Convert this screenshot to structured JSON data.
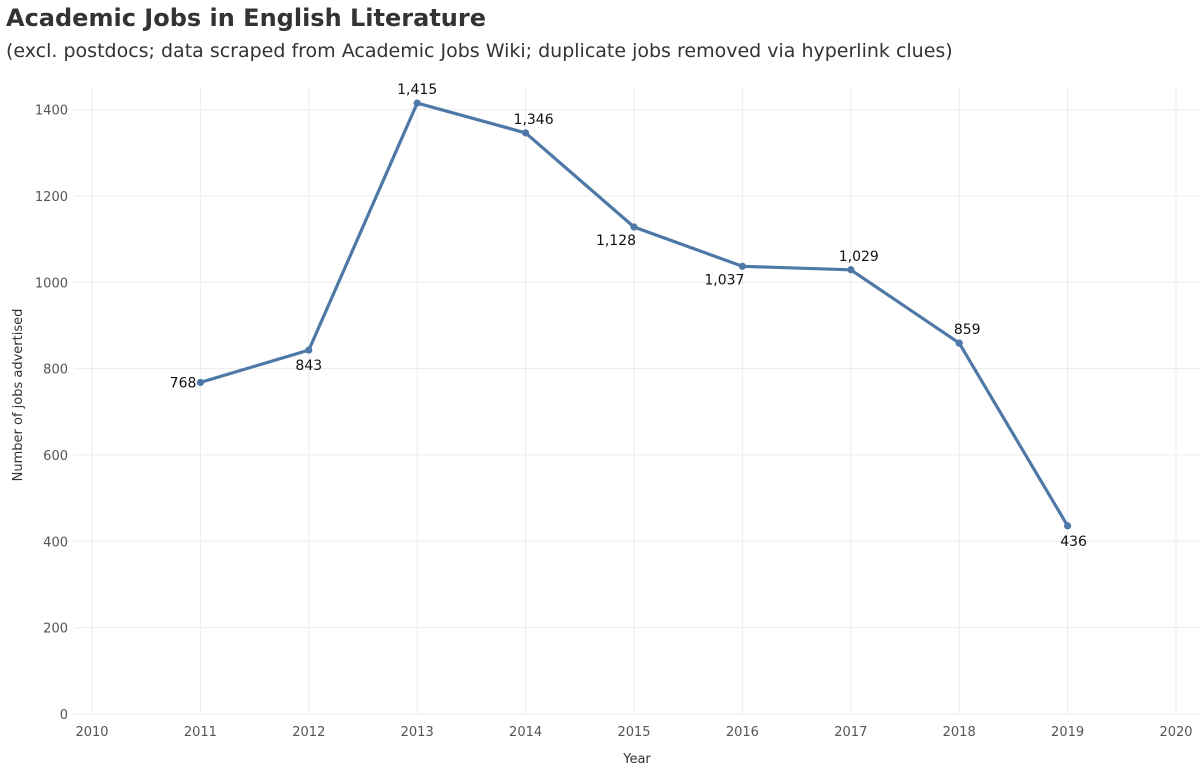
{
  "chart_data": {
    "type": "line",
    "title": "Academic Jobs in English Literature",
    "subtitle": "(excl. postdocs; data scraped from Academic Jobs Wiki; duplicate jobs removed via hyperlink clues)",
    "xlabel": "Year",
    "ylabel": "Number of jobs advertised",
    "xlim": [
      2010,
      2020
    ],
    "ylim": [
      0,
      1450
    ],
    "x_ticks": [
      "2010",
      "2011",
      "2012",
      "2013",
      "2014",
      "2015",
      "2016",
      "2017",
      "2018",
      "2019",
      "2020"
    ],
    "y_ticks": [
      "0",
      "200",
      "400",
      "600",
      "800",
      "1000",
      "1200",
      "1400"
    ],
    "grid": true,
    "color": "#4e79a7",
    "series": [
      {
        "x": [
          2011,
          2012,
          2013,
          2014,
          2015,
          2016,
          2017,
          2018,
          2019
        ],
        "values": [
          768,
          843,
          1415,
          1346,
          1128,
          1037,
          1029,
          859,
          436
        ],
        "labels": [
          "768",
          "843",
          "1,415",
          "1,346",
          "1,128",
          "1,037",
          "1,029",
          "859",
          "436"
        ]
      }
    ]
  }
}
